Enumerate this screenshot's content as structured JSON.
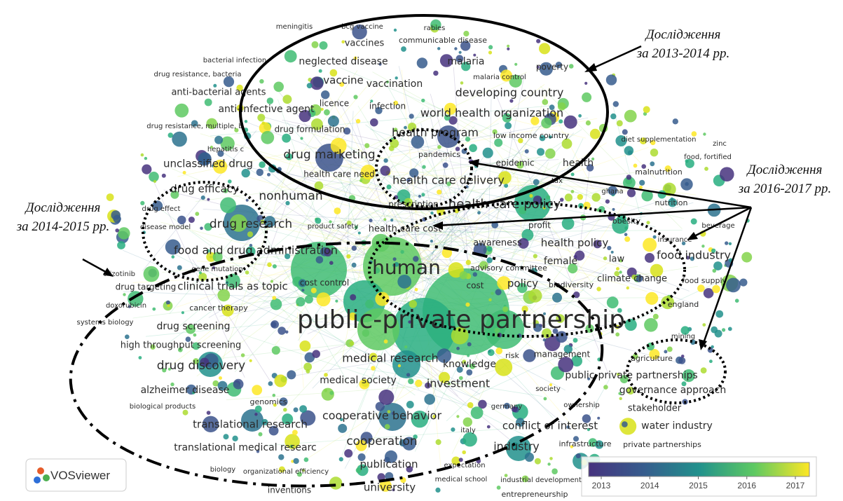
{
  "labels": [
    "meningitis",
    "bcg vaccine",
    "rabies",
    "communicable disease",
    "vaccines",
    "neglected disease",
    "malaria",
    "poverty",
    "bacterial infection",
    "drug resistance, bacteria",
    "vaccine",
    "vaccination",
    "malaria control",
    "anti-bacterial agents",
    "developing country",
    "licence",
    "infection",
    "anti-infective agent",
    "world health organization",
    "drug resistance, multiple, b",
    "drug formulation",
    "health program",
    "low income country",
    "diet supplementation",
    "zinc",
    "hepatitis c",
    "drug marketing",
    "pandemics",
    "food, fortified",
    "unclassified drug",
    "health care need",
    "epidemic",
    "health",
    "malnutrition",
    "health care delivery",
    "drug efficacy",
    "nonhuman",
    "tax",
    "ghana",
    "prescription",
    "health care policy",
    "nutrition",
    "drug effect",
    "drug research",
    "product safety",
    "health care cost",
    "profit",
    "obesity",
    "beverage",
    "disease model",
    "insurance",
    "food and drug administration",
    "awareness",
    "health policy",
    "food industry",
    "gene mutation",
    "human",
    "advisory committee",
    "female",
    "law",
    "crizotinib",
    "cost control",
    "clinical trials as topic",
    "drug targeting",
    "cost",
    "policy",
    "biodiversity",
    "climate change",
    "food supply",
    "doxorubicin",
    "cancer therapy",
    "england",
    "systems biology",
    "public-private partnership",
    "drug screening",
    "mining",
    "high throughput screening",
    "medical research",
    "management",
    "agriculture",
    "risk",
    "knowledge",
    "drug discovery",
    "public-private partnerships",
    "medical society",
    "investment",
    "society",
    "alzheimer disease",
    "governance approach",
    "genomics",
    "biological products",
    "germany",
    "ownership",
    "stakeholder",
    "cooperative behavior",
    "translational research",
    "italy",
    "conflict of interest",
    "water industry",
    "cooperation",
    "translational medical researc",
    "industry",
    "infrastructure",
    "private partnerships",
    "publication",
    "expectation",
    "biology",
    "organizational efficiency",
    "medical school",
    "industrial development",
    "university",
    "inventions",
    "entrepreneurship"
  ],
  "annotations": [
    {
      "lines": [
        "Дослідження",
        "за 2013-2014 рр."
      ]
    },
    {
      "lines": [
        "Дослідження",
        "за 2016-2017 рр."
      ]
    },
    {
      "lines": [
        "Дослідження",
        "за 2014-2015 рр."
      ]
    }
  ],
  "logo": "VOSviewer",
  "legend": {
    "ticks": [
      2013,
      2014,
      2015,
      2016,
      2017
    ]
  }
}
